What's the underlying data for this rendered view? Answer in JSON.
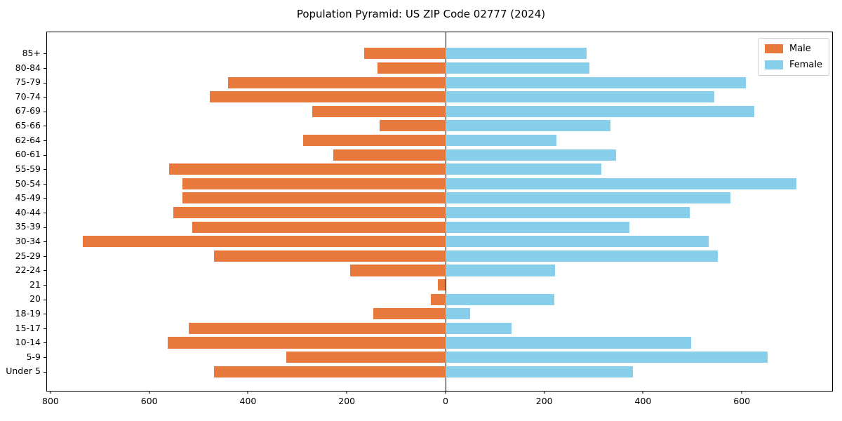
{
  "title": "Population Pyramid: US ZIP Code 02777 (2024)",
  "legend": {
    "items": [
      {
        "label": "Male",
        "color": "#E8793D"
      },
      {
        "label": "Female",
        "color": "#87CEEB"
      }
    ]
  },
  "chart_data": {
    "type": "bar",
    "subtype": "population_pyramid_horizontal",
    "title": "Population Pyramid: US ZIP Code 02777 (2024)",
    "categories_top_to_bottom": [
      "85+",
      "80-84",
      "75-79",
      "70-74",
      "67-69",
      "65-66",
      "62-64",
      "60-61",
      "55-59",
      "50-54",
      "45-49",
      "40-44",
      "35-39",
      "30-34",
      "25-29",
      "22-24",
      "21",
      "20",
      "18-19",
      "15-17",
      "10-14",
      "5-9",
      "Under 5"
    ],
    "series": [
      {
        "name": "Male",
        "side": "left",
        "color": "#E8793D",
        "values": [
          165,
          138,
          440,
          478,
          270,
          133,
          288,
          228,
          560,
          533,
          533,
          551,
          513,
          735,
          469,
          193,
          15,
          30,
          146,
          520,
          563,
          323,
          469
        ]
      },
      {
        "name": "Female",
        "side": "right",
        "color": "#87CEEB",
        "values": [
          285,
          292,
          608,
          545,
          625,
          334,
          225,
          346,
          316,
          711,
          577,
          494,
          373,
          533,
          552,
          222,
          0,
          220,
          50,
          133,
          497,
          652,
          379
        ]
      }
    ],
    "x_axis": {
      "tick_values": [
        -800,
        -600,
        -400,
        -200,
        0,
        200,
        400,
        600
      ],
      "tick_labels": [
        "800",
        "600",
        "400",
        "200",
        "0",
        "200",
        "400",
        "600"
      ],
      "xlim": [
        -807,
        783
      ]
    },
    "y_axis": {
      "note": "age groups listed top to bottom"
    },
    "grid": false,
    "legend_position": "upper right",
    "zero_divider_line": true
  }
}
